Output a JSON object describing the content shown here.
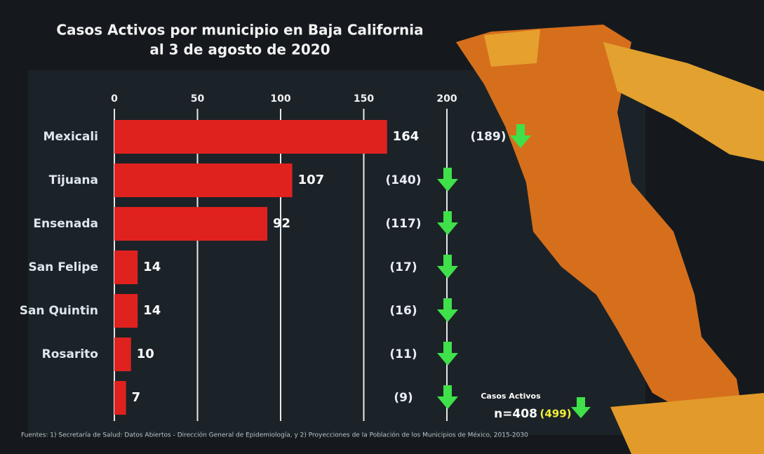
{
  "chart_data": {
    "type": "hbar",
    "title": "Casos Activos por municipio en Baja California",
    "subtitle": "al 3 de agosto de 2020",
    "categories": [
      "Mexicali",
      "Tijuana",
      "Ensenada",
      "San Felipe",
      "San Quintin",
      "Rosarito",
      null
    ],
    "values": [
      164,
      107,
      92,
      14,
      14,
      10,
      7
    ],
    "color": "#e0221f",
    "xlim": [
      0,
      200
    ],
    "xticks": [
      0,
      50,
      100,
      150,
      200
    ],
    "grid": true,
    "comparison": {
      "values": [
        189,
        140,
        117,
        17,
        16,
        11,
        9
      ],
      "value_labels": [
        "(189)",
        "(140)",
        "(117)",
        "(17)",
        "(16)",
        "(11)",
        "(9)"
      ]
    },
    "total": {
      "label": "Casos Activos",
      "text": "n=408",
      "previous_label": "(499)"
    },
    "source": "Fuentes: 1) Secretaría de Salud: Datos Abiertos - Dirección General de Epidemiología, y 2) Proyecciones de la Población de los Municipios de México, 2015-2030"
  }
}
